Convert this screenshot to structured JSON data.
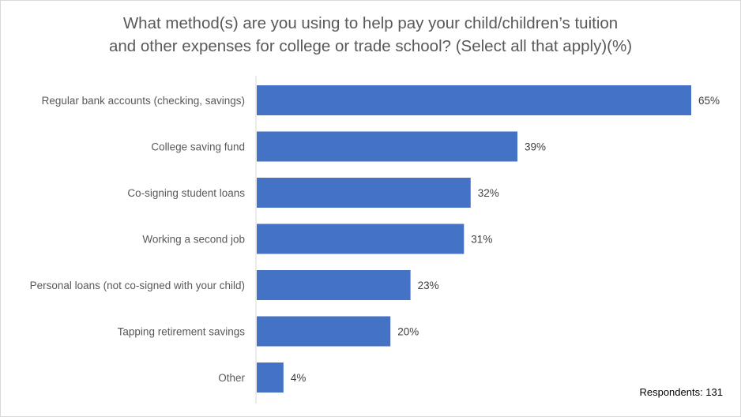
{
  "chart_data": {
    "type": "bar",
    "orientation": "horizontal",
    "title_lines": [
      "What method(s) are you using to help pay your child/children’s tuition",
      "and other expenses for college or trade school? (Select all that apply)(%)"
    ],
    "categories": [
      "Regular bank accounts (checking, savings)",
      "College saving fund",
      "Co-signing student loans",
      "Working a second job",
      "Personal loans (not co-signed with your child)",
      "Tapping retirement savings",
      "Other"
    ],
    "values": [
      65,
      39,
      32,
      31,
      23,
      20,
      4
    ],
    "value_labels": [
      "65%",
      "39%",
      "32%",
      "31%",
      "23%",
      "20%",
      "4%"
    ],
    "xlim": [
      0,
      65
    ],
    "grid": false,
    "legend": "none",
    "bar_color": "#4472C4",
    "note": "Respondents: 131"
  }
}
